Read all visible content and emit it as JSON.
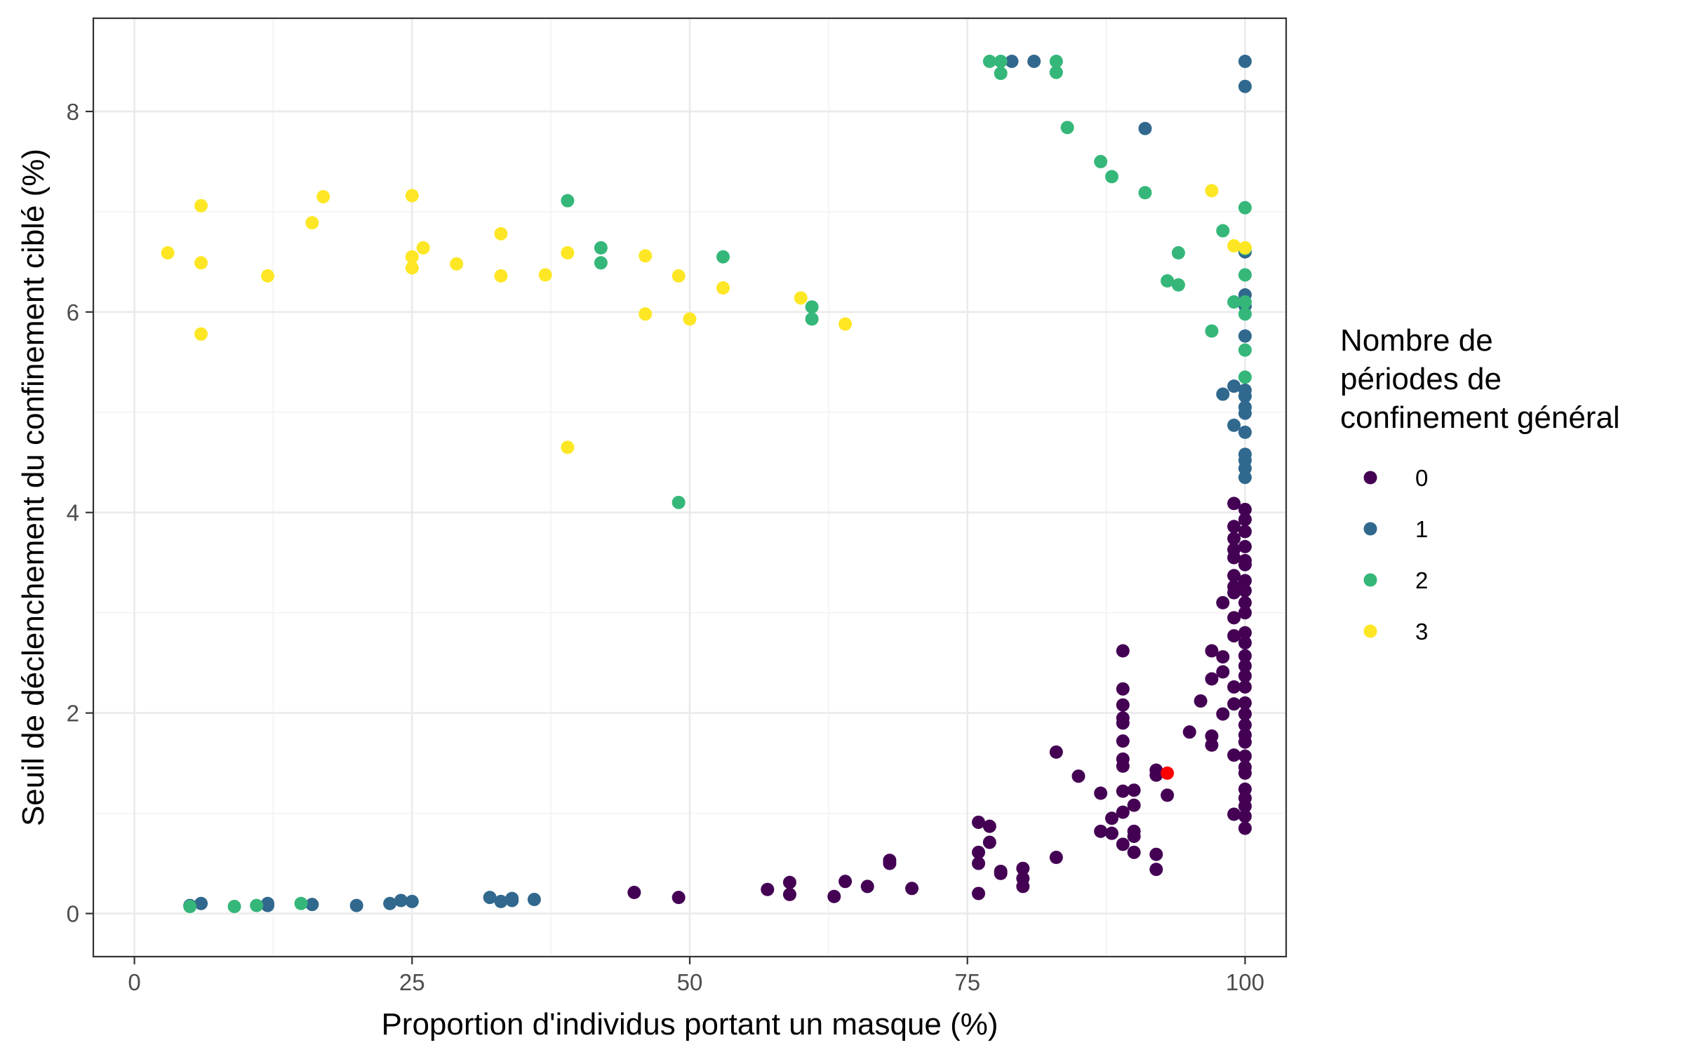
{
  "chart_data": {
    "type": "scatter",
    "title": "",
    "xlabel": "Proportion d'individus portant un masque (%)",
    "ylabel": "Seuil de déclenchement du confinement ciblé (%)",
    "xlim": [
      -3.7,
      103.7
    ],
    "ylim": [
      -0.43,
      8.93
    ],
    "x_ticks": [
      0,
      25,
      50,
      75,
      100
    ],
    "y_ticks": [
      0,
      2,
      4,
      6,
      8
    ],
    "x_tick_labels": [
      "0",
      "25",
      "50",
      "75",
      "100"
    ],
    "y_tick_labels": [
      "0",
      "2",
      "4",
      "6",
      "8"
    ],
    "grid": true,
    "legend": {
      "title_lines": [
        "Nombre de",
        "périodes de",
        "confinement général"
      ],
      "placement": "right"
    },
    "series": [
      {
        "name": "0",
        "color": "#440154",
        "points": [
          [
            45,
            0.21
          ],
          [
            49,
            0.16
          ],
          [
            57,
            0.24
          ],
          [
            59,
            0.19
          ],
          [
            59,
            0.31
          ],
          [
            63,
            0.17
          ],
          [
            64,
            0.32
          ],
          [
            66,
            0.27
          ],
          [
            68,
            0.5
          ],
          [
            68,
            0.53
          ],
          [
            70,
            0.25
          ],
          [
            76,
            0.2
          ],
          [
            76,
            0.5
          ],
          [
            76,
            0.61
          ],
          [
            76,
            0.91
          ],
          [
            77,
            0.71
          ],
          [
            77,
            0.87
          ],
          [
            78,
            0.4
          ],
          [
            78,
            0.42
          ],
          [
            80,
            0.27
          ],
          [
            80,
            0.35
          ],
          [
            80,
            0.45
          ],
          [
            83,
            0.56
          ],
          [
            83,
            1.61
          ],
          [
            85,
            1.37
          ],
          [
            87,
            0.82
          ],
          [
            87,
            1.2
          ],
          [
            88,
            0.8
          ],
          [
            88,
            0.95
          ],
          [
            89,
            0.69
          ],
          [
            89,
            1.01
          ],
          [
            89,
            1.22
          ],
          [
            89,
            1.47
          ],
          [
            89,
            1.54
          ],
          [
            89,
            1.72
          ],
          [
            89,
            1.9
          ],
          [
            89,
            1.95
          ],
          [
            89,
            2.08
          ],
          [
            89,
            2.24
          ],
          [
            89,
            2.62
          ],
          [
            90,
            0.61
          ],
          [
            90,
            0.77
          ],
          [
            90,
            0.82
          ],
          [
            90,
            1.08
          ],
          [
            90,
            1.23
          ],
          [
            92,
            0.44
          ],
          [
            92,
            0.59
          ],
          [
            92,
            1.38
          ],
          [
            92,
            1.43
          ],
          [
            93,
            1.18
          ],
          [
            95,
            1.81
          ],
          [
            96,
            2.12
          ],
          [
            97,
            1.68
          ],
          [
            97,
            1.77
          ],
          [
            97,
            2.34
          ],
          [
            97,
            2.62
          ],
          [
            98,
            1.99
          ],
          [
            98,
            2.41
          ],
          [
            98,
            2.56
          ],
          [
            98,
            3.1
          ],
          [
            99,
            0.99
          ],
          [
            99,
            1.58
          ],
          [
            99,
            2.09
          ],
          [
            99,
            2.26
          ],
          [
            99,
            2.77
          ],
          [
            99,
            2.95
          ],
          [
            99,
            3.2
          ],
          [
            99,
            3.26
          ],
          [
            99,
            3.37
          ],
          [
            99,
            3.55
          ],
          [
            99,
            3.63
          ],
          [
            99,
            3.74
          ],
          [
            99,
            3.86
          ],
          [
            99,
            4.09
          ],
          [
            100,
            0.85
          ],
          [
            100,
            0.97
          ],
          [
            100,
            1.07
          ],
          [
            100,
            1.15
          ],
          [
            100,
            1.24
          ],
          [
            100,
            1.4
          ],
          [
            100,
            1.46
          ],
          [
            100,
            1.57
          ],
          [
            100,
            1.71
          ],
          [
            100,
            1.78
          ],
          [
            100,
            1.88
          ],
          [
            100,
            1.99
          ],
          [
            100,
            2.1
          ],
          [
            100,
            2.26
          ],
          [
            100,
            2.37
          ],
          [
            100,
            2.47
          ],
          [
            100,
            2.57
          ],
          [
            100,
            2.7
          ],
          [
            100,
            2.8
          ],
          [
            100,
            3.0
          ],
          [
            100,
            3.1
          ],
          [
            100,
            3.22
          ],
          [
            100,
            3.32
          ],
          [
            100,
            3.48
          ],
          [
            100,
            3.52
          ],
          [
            100,
            3.66
          ],
          [
            100,
            3.81
          ],
          [
            100,
            3.93
          ],
          [
            100,
            4.03
          ]
        ]
      },
      {
        "name": "1",
        "color": "#31688e",
        "points": [
          [
            5,
            0.08
          ],
          [
            6,
            0.1
          ],
          [
            12,
            0.08
          ],
          [
            12,
            0.1
          ],
          [
            16,
            0.09
          ],
          [
            20,
            0.08
          ],
          [
            23,
            0.1
          ],
          [
            24,
            0.13
          ],
          [
            25,
            0.12
          ],
          [
            32,
            0.16
          ],
          [
            33,
            0.12
          ],
          [
            34,
            0.13
          ],
          [
            34,
            0.15
          ],
          [
            36,
            0.14
          ],
          [
            79,
            8.5
          ],
          [
            81,
            8.5
          ],
          [
            91,
            7.83
          ],
          [
            98,
            5.18
          ],
          [
            99,
            4.87
          ],
          [
            99,
            5.26
          ],
          [
            100,
            4.35
          ],
          [
            100,
            4.44
          ],
          [
            100,
            4.52
          ],
          [
            100,
            4.58
          ],
          [
            100,
            4.8
          ],
          [
            100,
            4.99
          ],
          [
            100,
            5.05
          ],
          [
            100,
            5.16
          ],
          [
            100,
            5.22
          ],
          [
            100,
            5.76
          ],
          [
            100,
            6.06
          ],
          [
            100,
            6.17
          ],
          [
            100,
            6.6
          ],
          [
            100,
            8.25
          ],
          [
            100,
            8.5
          ]
        ]
      },
      {
        "name": "2",
        "color": "#35b779",
        "points": [
          [
            5,
            0.07
          ],
          [
            9,
            0.07
          ],
          [
            11,
            0.08
          ],
          [
            15,
            0.1
          ],
          [
            39,
            7.11
          ],
          [
            42,
            6.49
          ],
          [
            42,
            6.64
          ],
          [
            49,
            4.1
          ],
          [
            53,
            6.55
          ],
          [
            61,
            5.93
          ],
          [
            61,
            6.05
          ],
          [
            77,
            8.5
          ],
          [
            78,
            8.38
          ],
          [
            78,
            8.5
          ],
          [
            83,
            8.39
          ],
          [
            83,
            8.5
          ],
          [
            84,
            7.84
          ],
          [
            87,
            7.5
          ],
          [
            88,
            7.35
          ],
          [
            91,
            7.19
          ],
          [
            93,
            6.31
          ],
          [
            94,
            6.27
          ],
          [
            94,
            6.59
          ],
          [
            97,
            5.81
          ],
          [
            98,
            6.81
          ],
          [
            99,
            6.1
          ],
          [
            100,
            5.35
          ],
          [
            100,
            5.62
          ],
          [
            100,
            5.98
          ],
          [
            100,
            6.1
          ],
          [
            100,
            6.37
          ],
          [
            100,
            6.63
          ],
          [
            100,
            7.04
          ]
        ]
      },
      {
        "name": "3",
        "color": "#fde725",
        "points": [
          [
            3,
            6.59
          ],
          [
            6,
            5.78
          ],
          [
            6,
            6.49
          ],
          [
            6,
            7.06
          ],
          [
            12,
            6.36
          ],
          [
            16,
            6.89
          ],
          [
            17,
            7.15
          ],
          [
            25,
            6.44
          ],
          [
            25,
            6.55
          ],
          [
            25,
            7.16
          ],
          [
            26,
            6.64
          ],
          [
            29,
            6.48
          ],
          [
            33,
            6.36
          ],
          [
            33,
            6.78
          ],
          [
            37,
            6.37
          ],
          [
            39,
            4.65
          ],
          [
            39,
            6.59
          ],
          [
            46,
            5.98
          ],
          [
            46,
            6.56
          ],
          [
            49,
            6.36
          ],
          [
            50,
            5.93
          ],
          [
            53,
            6.24
          ],
          [
            60,
            6.14
          ],
          [
            64,
            5.88
          ],
          [
            97,
            7.21
          ],
          [
            99,
            6.66
          ],
          [
            100,
            6.64
          ]
        ]
      }
    ],
    "highlight": {
      "color": "#ff0000",
      "point": [
        93,
        1.4
      ]
    }
  }
}
